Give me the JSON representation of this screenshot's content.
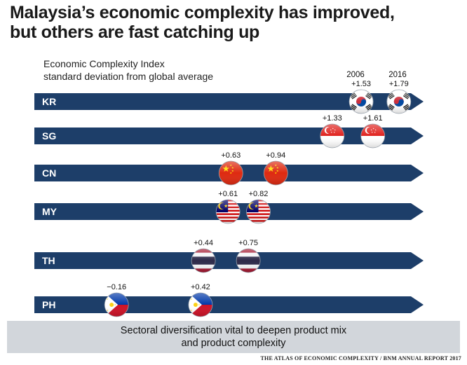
{
  "title_line1": "Malaysia’s economic complexity has improved,",
  "title_line2": "but others are fast catching up",
  "subtitle_line1": "Economic Complexity Index",
  "subtitle_line2": "standard deviation from global average",
  "footer_text": "Sectoral diversification vital to deepen product mix and product complexity",
  "source": "THE ATLAS OF ECONOMIC COMPLEXITY / BNM ANNUAL REPORT 2017",
  "colors": {
    "bar": "#1d3e69",
    "footer_bg": "#d2d6db"
  },
  "chart_data": {
    "type": "dot-range",
    "title": "Malaysia’s economic complexity has improved, but others are fast catching up",
    "ylabel": "Economic Complexity Index standard deviation from global average",
    "series_years": [
      "2006",
      "2016"
    ],
    "xlim": [
      -0.5,
      2.0
    ],
    "rows": [
      {
        "country": "KR",
        "v2006": 1.53,
        "v2016": 1.79,
        "l2006": "+1.53",
        "l2016": "+1.79",
        "flag": "korea-flag-icon"
      },
      {
        "country": "SG",
        "v2006": 1.33,
        "v2016": 1.61,
        "l2006": "+1.33",
        "l2016": "+1.61",
        "flag": "singapore-flag-icon"
      },
      {
        "country": "CN",
        "v2006": 0.63,
        "v2016": 0.94,
        "l2006": "+0.63",
        "l2016": "+0.94",
        "flag": "china-flag-icon"
      },
      {
        "country": "MY",
        "v2006": 0.61,
        "v2016": 0.82,
        "l2006": "+0.61",
        "l2016": "+0.82",
        "flag": "malaysia-flag-icon"
      },
      {
        "country": "TH",
        "v2006": 0.44,
        "v2016": 0.75,
        "l2006": "+0.44",
        "l2016": "+0.75",
        "flag": "thailand-flag-icon"
      },
      {
        "country": "PH",
        "v2006": -0.16,
        "v2016": 0.42,
        "l2006": "−0.16",
        "l2016": "+0.42",
        "flag": "philippines-flag-icon"
      }
    ]
  }
}
